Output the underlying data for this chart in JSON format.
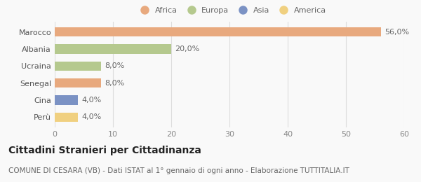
{
  "categories": [
    "Marocco",
    "Albania",
    "Ucraina",
    "Senegal",
    "Cina",
    "Perù"
  ],
  "values": [
    56.0,
    20.0,
    8.0,
    8.0,
    4.0,
    4.0
  ],
  "colors": [
    "#e8a97e",
    "#b5c98e",
    "#b5c98e",
    "#e8a97e",
    "#7b92c4",
    "#f0d080"
  ],
  "continent_labels": [
    "Africa",
    "Europa",
    "Asia",
    "America"
  ],
  "continent_colors": [
    "#e8a97e",
    "#b5c98e",
    "#7b92c4",
    "#f0d080"
  ],
  "xlim": [
    0,
    60
  ],
  "xticks": [
    0,
    10,
    20,
    30,
    40,
    50,
    60
  ],
  "title": "Cittadini Stranieri per Cittadinanza",
  "subtitle": "COMUNE DI CESARA (VB) - Dati ISTAT al 1° gennaio di ogni anno - Elaborazione TUTTITALIA.IT",
  "bar_height": 0.55,
  "bg_color": "#f9f9f9",
  "grid_color": "#dddddd",
  "title_fontsize": 10,
  "subtitle_fontsize": 7.5,
  "label_fontsize": 8,
  "tick_fontsize": 8,
  "legend_fontsize": 8
}
